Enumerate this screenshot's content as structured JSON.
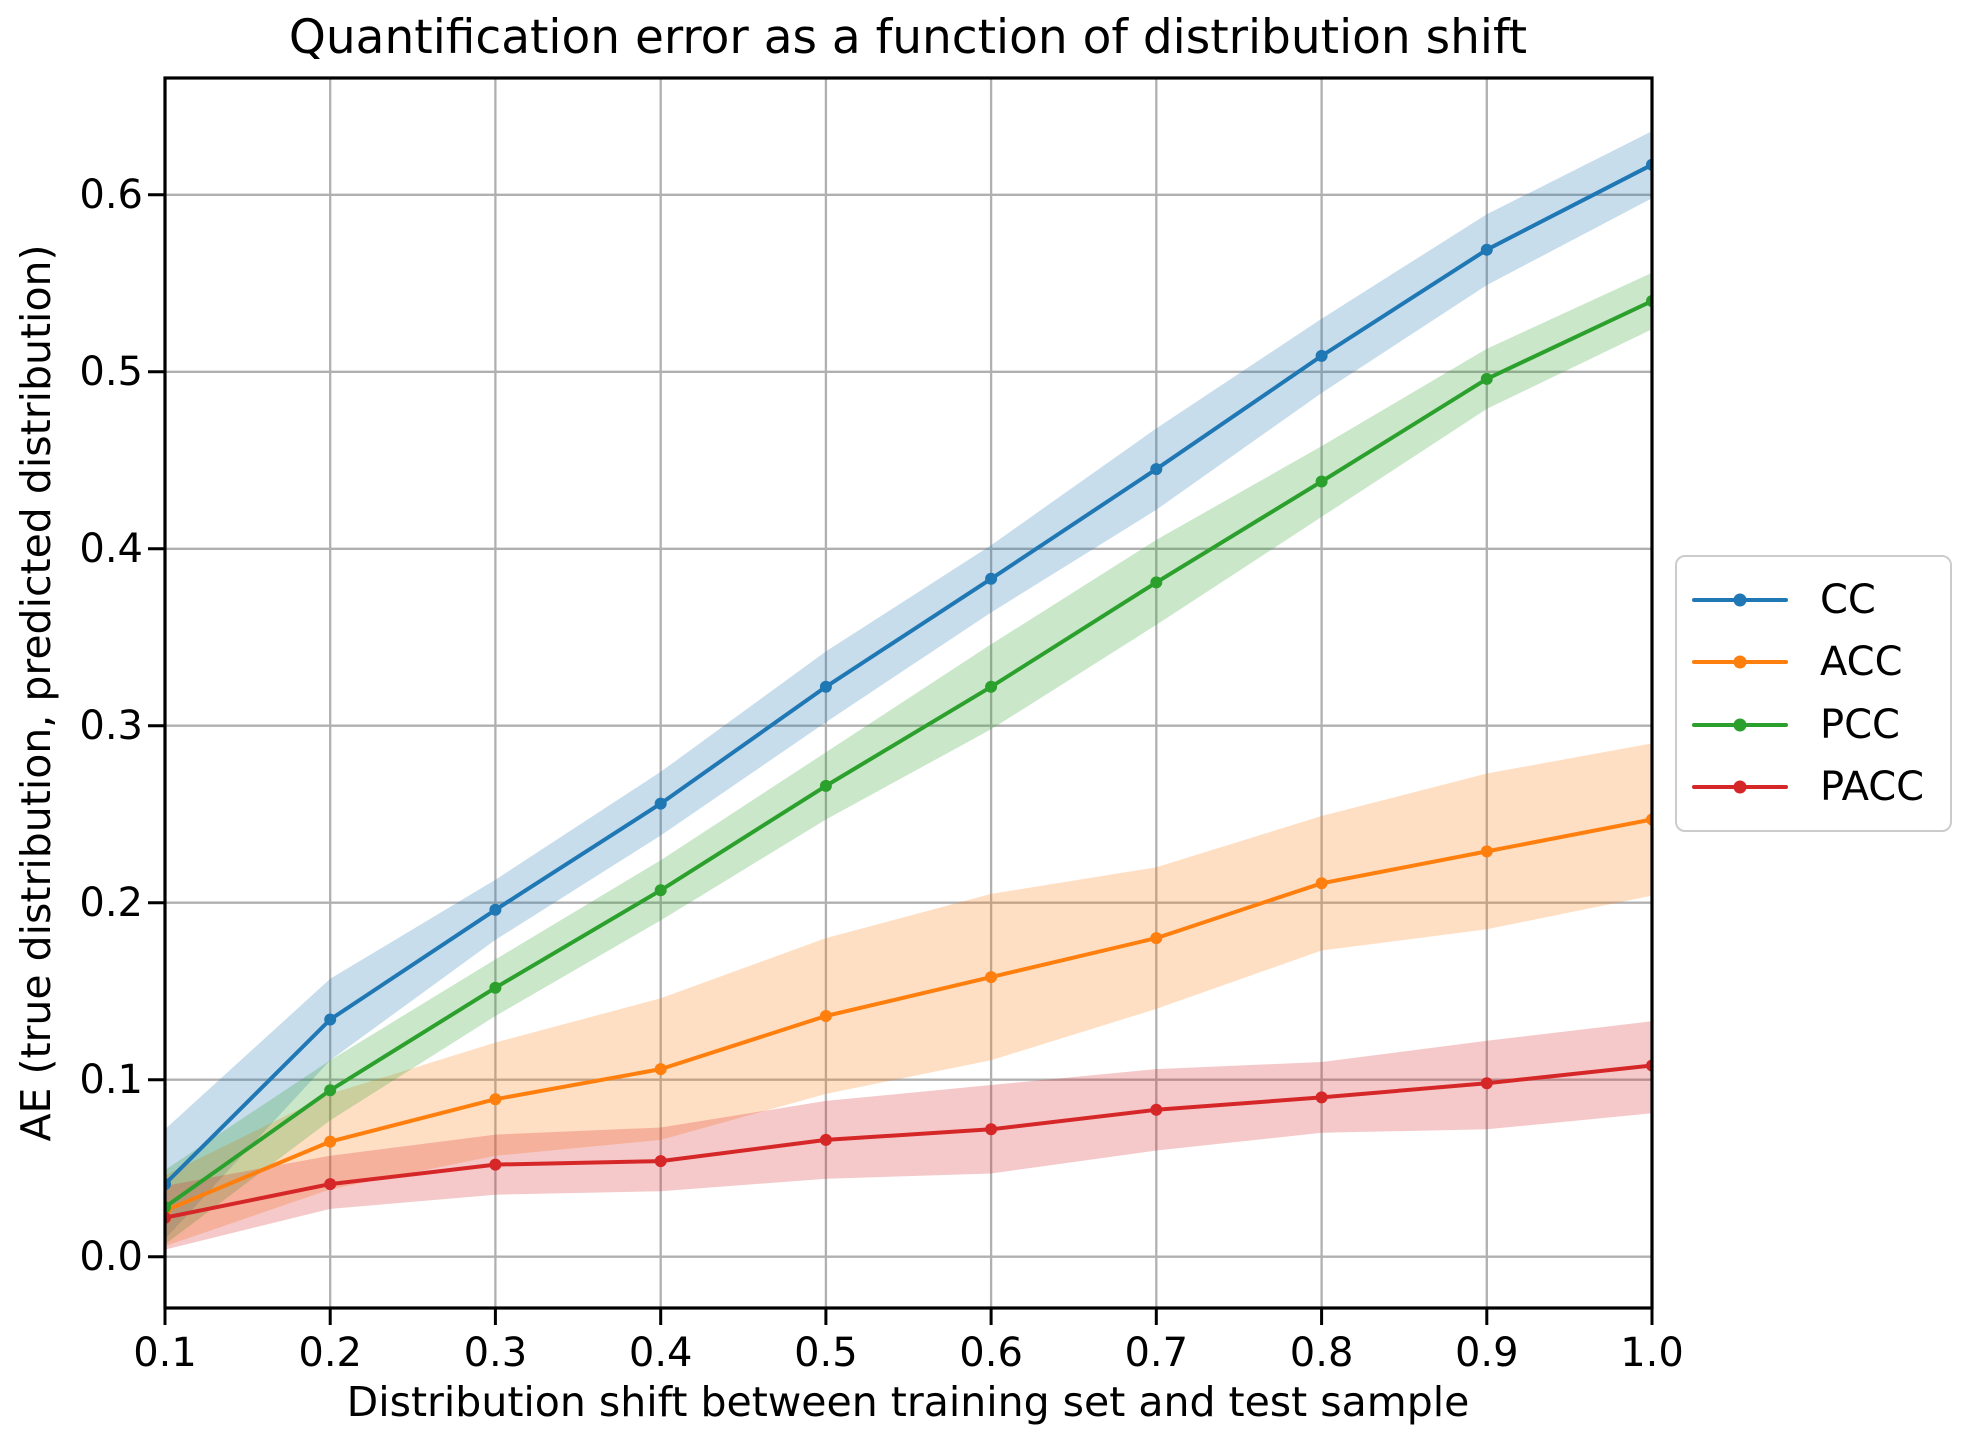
{
  "chart_data": {
    "type": "line",
    "title": "Quantification error as a function of distribution shift",
    "xlabel": "Distribution shift between training set and test sample",
    "ylabel": "AE (true distribution, predicted distribution)",
    "x": [
      0.1,
      0.2,
      0.3,
      0.4,
      0.5,
      0.6,
      0.7,
      0.8,
      0.9,
      1.0
    ],
    "xlim": [
      0.1,
      1.0
    ],
    "ylim": [
      -0.029,
      0.666
    ],
    "grid": true,
    "gridline_color": "#b0b0b0",
    "band_opacity": 0.25,
    "legend_position": "outside-right",
    "x_axis": {
      "tick_labels": [
        "0.1",
        "0.2",
        "0.3",
        "0.4",
        "0.5",
        "0.6",
        "0.7",
        "0.8",
        "0.9",
        "1.0"
      ],
      "tick_values": [
        0.1,
        0.2,
        0.3,
        0.4,
        0.5,
        0.6,
        0.7,
        0.8,
        0.9,
        1.0
      ]
    },
    "y_axis": {
      "tick_labels": [
        "0.0",
        "0.1",
        "0.2",
        "0.3",
        "0.4",
        "0.5",
        "0.6"
      ],
      "tick_values": [
        0.0,
        0.1,
        0.2,
        0.3,
        0.4,
        0.5,
        0.6
      ]
    },
    "series": [
      {
        "name": "CC",
        "color": "#1f77b4",
        "values": [
          0.041,
          0.134,
          0.196,
          0.256,
          0.322,
          0.383,
          0.445,
          0.509,
          0.569,
          0.617
        ],
        "band_upper": [
          0.072,
          0.157,
          0.213,
          0.274,
          0.342,
          0.402,
          0.468,
          0.53,
          0.589,
          0.636
        ],
        "band_lower": [
          0.01,
          0.111,
          0.179,
          0.238,
          0.302,
          0.364,
          0.422,
          0.488,
          0.549,
          0.598
        ]
      },
      {
        "name": "ACC",
        "color": "#ff7f0e",
        "values": [
          0.026,
          0.065,
          0.089,
          0.106,
          0.136,
          0.158,
          0.18,
          0.211,
          0.229,
          0.247
        ],
        "band_upper": [
          0.046,
          0.092,
          0.121,
          0.146,
          0.18,
          0.205,
          0.22,
          0.249,
          0.273,
          0.29
        ],
        "band_lower": [
          0.006,
          0.038,
          0.057,
          0.066,
          0.092,
          0.111,
          0.14,
          0.173,
          0.185,
          0.204
        ]
      },
      {
        "name": "PCC",
        "color": "#2ca02c",
        "values": [
          0.028,
          0.094,
          0.152,
          0.207,
          0.266,
          0.322,
          0.381,
          0.438,
          0.496,
          0.54
        ],
        "band_upper": [
          0.049,
          0.111,
          0.168,
          0.224,
          0.285,
          0.346,
          0.405,
          0.458,
          0.513,
          0.556
        ],
        "band_lower": [
          0.007,
          0.077,
          0.136,
          0.19,
          0.247,
          0.298,
          0.357,
          0.418,
          0.479,
          0.524
        ]
      },
      {
        "name": "PACC",
        "color": "#d62728",
        "values": [
          0.022,
          0.041,
          0.052,
          0.054,
          0.066,
          0.072,
          0.083,
          0.09,
          0.098,
          0.108
        ],
        "band_upper": [
          0.04,
          0.057,
          0.069,
          0.073,
          0.088,
          0.097,
          0.106,
          0.11,
          0.122,
          0.133
        ],
        "band_lower": [
          0.004,
          0.027,
          0.035,
          0.037,
          0.044,
          0.047,
          0.06,
          0.07,
          0.072,
          0.081
        ]
      }
    ],
    "legend_entries": [
      "CC",
      "ACC",
      "PCC",
      "PACC"
    ]
  }
}
